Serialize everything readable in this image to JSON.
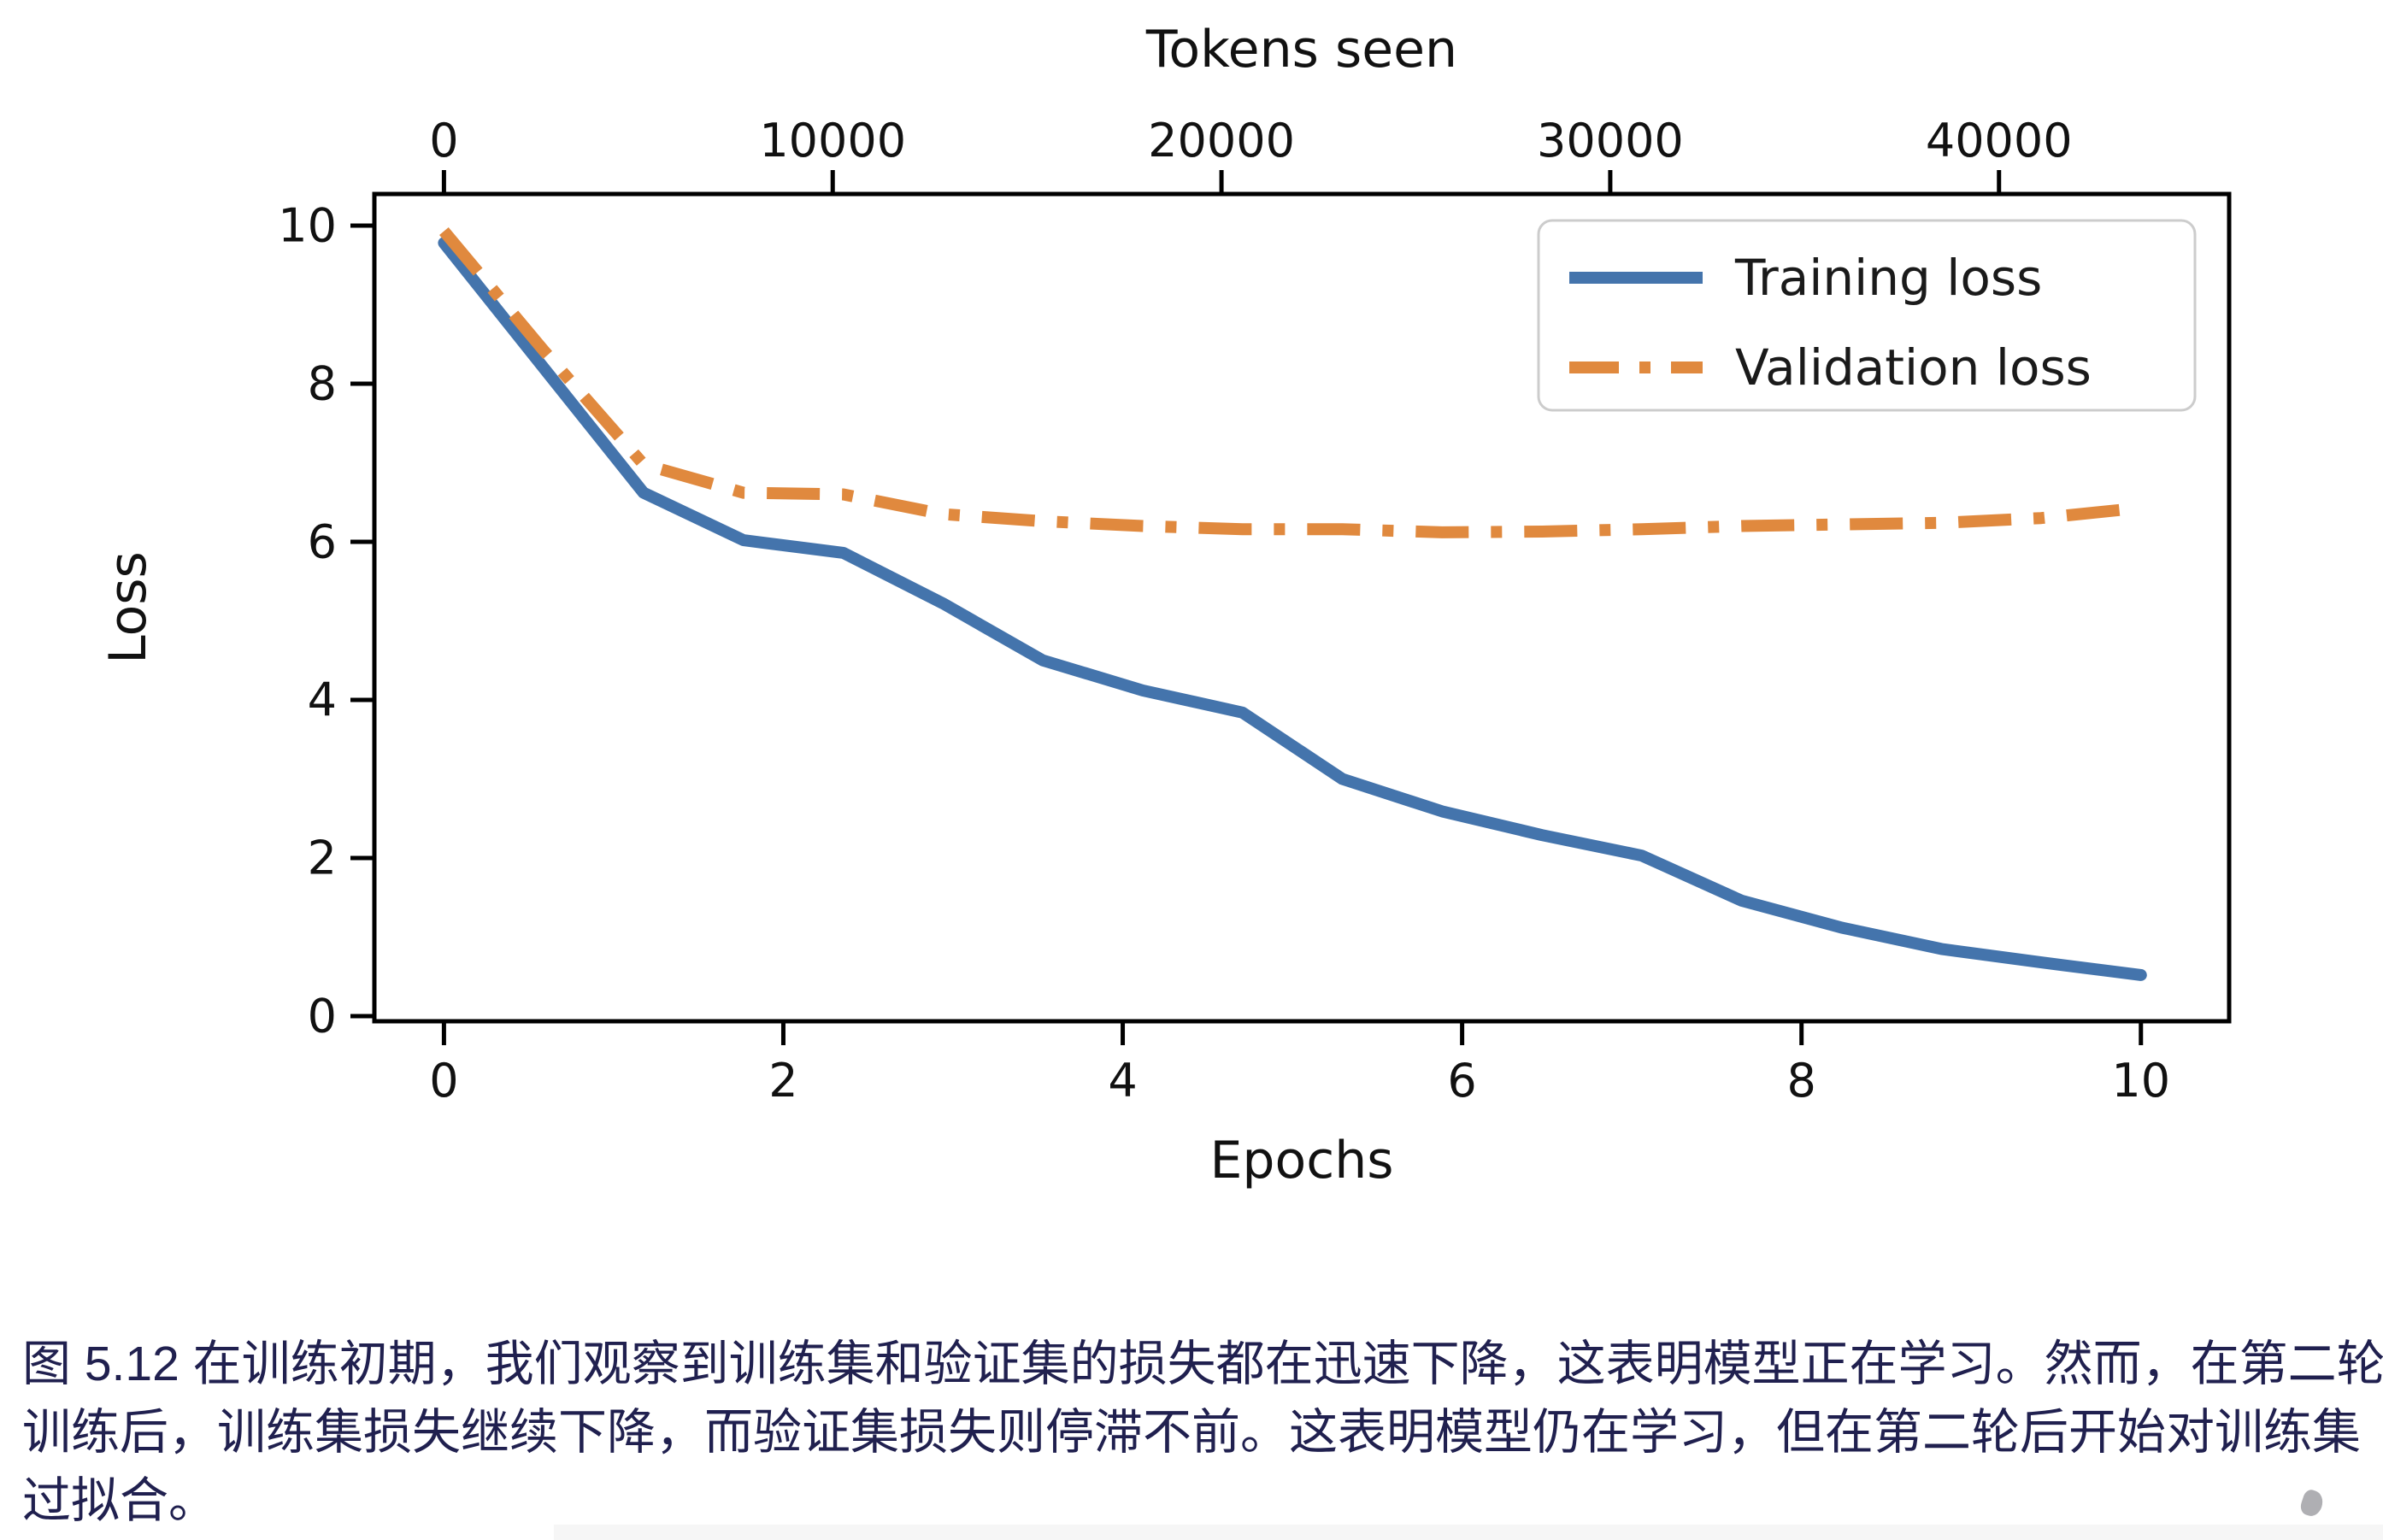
{
  "figure": {
    "caption_color": "#20204f",
    "caption_lines": [
      "图 5.12 在训练初期，我们观察到训练集和验证集的损失都在迅速下降，这表明模型正在学习。然而，在第二轮",
      "训练后，训练集损失继续下降，而验证集损失则停滞不前。这表明模型仍在学习，但在第二轮后开始对训练集",
      "过拟合。"
    ]
  },
  "chart_data": {
    "type": "line",
    "title": "",
    "xlabel": "Epochs",
    "ylabel": "Loss",
    "top_xlabel": "Tokens seen",
    "grid": false,
    "legend_position": "upper right",
    "legend_entries": [
      "Training loss",
      "Validation loss"
    ],
    "axis_color": "#000000",
    "tick_label_color": "#111111",
    "x_epochs": [
      0,
      0.588,
      1.176,
      1.765,
      2.353,
      2.941,
      3.529,
      4.118,
      4.706,
      5.294,
      5.882,
      6.471,
      7.059,
      7.647,
      8.235,
      8.824,
      9.412,
      10
    ],
    "series": [
      {
        "name": "Training loss",
        "color": "#4474AC",
        "style": "solid",
        "values": [
          9.78,
          8.2,
          6.62,
          6.02,
          5.86,
          5.22,
          4.5,
          4.12,
          3.84,
          3.0,
          2.59,
          2.29,
          2.03,
          1.46,
          1.12,
          0.85,
          0.68,
          0.52
        ]
      },
      {
        "name": "Validation loss",
        "color": "#E0893E",
        "style": "dash-dot",
        "values": [
          9.93,
          8.42,
          6.98,
          6.62,
          6.6,
          6.35,
          6.26,
          6.2,
          6.16,
          6.16,
          6.12,
          6.13,
          6.16,
          6.2,
          6.22,
          6.24,
          6.3,
          6.43
        ]
      }
    ],
    "x_ticks": [
      0,
      2,
      4,
      6,
      8,
      10
    ],
    "y_ticks": [
      0,
      2,
      4,
      6,
      8,
      10
    ],
    "top_ticks_tokens": [
      0,
      10000,
      20000,
      30000,
      40000
    ],
    "tokens_per_epoch": 4365,
    "xlim": [
      -0.41,
      10.52
    ],
    "ylim": [
      -0.065,
      10.4
    ]
  }
}
